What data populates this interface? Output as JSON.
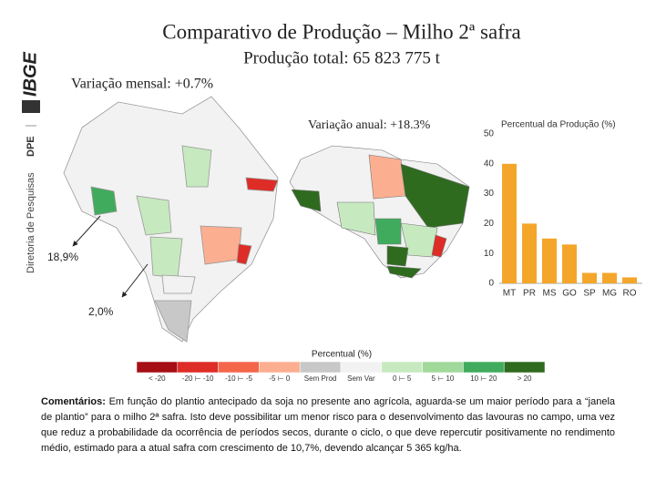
{
  "header": {
    "org": "IBGE",
    "dept": "Diretoria de Pesquisas",
    "dept_code": "DPE",
    "title": "Comparativo de Produção – Milho 2ª safra",
    "subtitle": "Produção total: 65 823 775 t"
  },
  "maps": {
    "monthly_label": "Variação mensal: +0.7%",
    "annual_label": "Variação anual: +18.3%",
    "callouts": [
      "18,9%",
      "2,0%"
    ]
  },
  "chart_data": {
    "type": "bar",
    "title": "Percentual da Produção (%)",
    "categories": [
      "MT",
      "PR",
      "MS",
      "GO",
      "SP",
      "MG",
      "RO"
    ],
    "values": [
      40,
      20,
      15,
      13,
      3.5,
      3.5,
      2
    ],
    "color": "#f4a62a",
    "ylim": [
      0,
      50
    ],
    "yticks": [
      0,
      10,
      20,
      30,
      40,
      50
    ]
  },
  "legend": {
    "title": "Percentual (%)",
    "items": [
      {
        "label": "< -20",
        "color": "#a50f15"
      },
      {
        "label": "-20 ⊢ -10",
        "color": "#de2d26"
      },
      {
        "label": "-10 ⊢ -5",
        "color": "#f4664a"
      },
      {
        "label": "-5 ⊢ 0",
        "color": "#fcae91"
      },
      {
        "label": "Sem Prod",
        "color": "#c8c8c8"
      },
      {
        "label": "Sem Var",
        "color": "#f2f2f2"
      },
      {
        "label": "0 ⊢ 5",
        "color": "#c7e9c0"
      },
      {
        "label": "5 ⊢ 10",
        "color": "#a1d99b"
      },
      {
        "label": "10 ⊢ 20",
        "color": "#41ab5d"
      },
      {
        "label": "> 20",
        "color": "#2f6b1f"
      }
    ]
  },
  "comments": {
    "label": "Comentários:",
    "text": "Em função do plantio antecipado da soja no presente ano agrícola, aguarda-se um maior período para a “janela de plantio” para o milho 2ª safra. Isto deve possibilitar um menor risco para o desenvolvimento das lavouras no campo, uma vez que reduz a probabilidade da ocorrência de períodos secos, durante o ciclo, o que deve repercutir positivamente no rendimento médio, estimado para a atual safra com crescimento de 10,7%, devendo alcançar 5 365 kg/ha."
  }
}
